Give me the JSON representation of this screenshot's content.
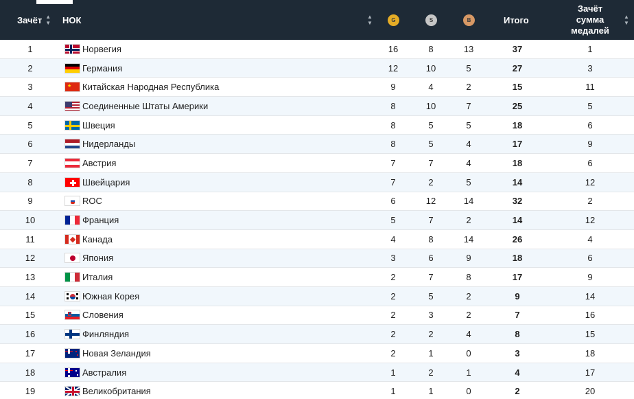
{
  "header": {
    "rank_label": "Зачёт",
    "noc_label": "НОК",
    "gold_label": "G",
    "silver_label": "S",
    "bronze_label": "B",
    "total_label": "Итого",
    "sum_label_1": "Зачёт",
    "sum_label_2": "сумма",
    "sum_label_3": "медалей",
    "header_bg": "#1e2a36",
    "gold_color": "#e5ac26",
    "silver_color": "#c6c6c6",
    "bronze_color": "#d79865",
    "sort_icon": "sort-arrows-icon"
  },
  "rows": [
    {
      "rank": "1",
      "country": "Норвегия",
      "flag": "norway-flag",
      "gold": "16",
      "silver": "8",
      "bronze": "13",
      "total": "37",
      "sum_rank": "1"
    },
    {
      "rank": "2",
      "country": "Германия",
      "flag": "germany-flag",
      "gold": "12",
      "silver": "10",
      "bronze": "5",
      "total": "27",
      "sum_rank": "3"
    },
    {
      "rank": "3",
      "country": "Китайская Народная Республика",
      "flag": "china-flag",
      "gold": "9",
      "silver": "4",
      "bronze": "2",
      "total": "15",
      "sum_rank": "11"
    },
    {
      "rank": "4",
      "country": "Соединенные Штаты Америки",
      "flag": "usa-flag",
      "gold": "8",
      "silver": "10",
      "bronze": "7",
      "total": "25",
      "sum_rank": "5"
    },
    {
      "rank": "5",
      "country": "Швеция",
      "flag": "sweden-flag",
      "gold": "8",
      "silver": "5",
      "bronze": "5",
      "total": "18",
      "sum_rank": "6"
    },
    {
      "rank": "6",
      "country": "Нидерланды",
      "flag": "netherlands-flag",
      "gold": "8",
      "silver": "5",
      "bronze": "4",
      "total": "17",
      "sum_rank": "9"
    },
    {
      "rank": "7",
      "country": "Австрия",
      "flag": "austria-flag",
      "gold": "7",
      "silver": "7",
      "bronze": "4",
      "total": "18",
      "sum_rank": "6"
    },
    {
      "rank": "8",
      "country": "Швейцария",
      "flag": "switzerland-flag",
      "gold": "7",
      "silver": "2",
      "bronze": "5",
      "total": "14",
      "sum_rank": "12"
    },
    {
      "rank": "9",
      "country": "ROC",
      "flag": "roc-flag",
      "gold": "6",
      "silver": "12",
      "bronze": "14",
      "total": "32",
      "sum_rank": "2"
    },
    {
      "rank": "10",
      "country": "Франция",
      "flag": "france-flag",
      "gold": "5",
      "silver": "7",
      "bronze": "2",
      "total": "14",
      "sum_rank": "12"
    },
    {
      "rank": "11",
      "country": "Канада",
      "flag": "canada-flag",
      "gold": "4",
      "silver": "8",
      "bronze": "14",
      "total": "26",
      "sum_rank": "4"
    },
    {
      "rank": "12",
      "country": "Япония",
      "flag": "japan-flag",
      "gold": "3",
      "silver": "6",
      "bronze": "9",
      "total": "18",
      "sum_rank": "6"
    },
    {
      "rank": "13",
      "country": "Италия",
      "flag": "italy-flag",
      "gold": "2",
      "silver": "7",
      "bronze": "8",
      "total": "17",
      "sum_rank": "9"
    },
    {
      "rank": "14",
      "country": "Южная Корея",
      "flag": "south-korea-flag",
      "gold": "2",
      "silver": "5",
      "bronze": "2",
      "total": "9",
      "sum_rank": "14"
    },
    {
      "rank": "15",
      "country": "Словения",
      "flag": "slovenia-flag",
      "gold": "2",
      "silver": "3",
      "bronze": "2",
      "total": "7",
      "sum_rank": "16"
    },
    {
      "rank": "16",
      "country": "Финляндия",
      "flag": "finland-flag",
      "gold": "2",
      "silver": "2",
      "bronze": "4",
      "total": "8",
      "sum_rank": "15"
    },
    {
      "rank": "17",
      "country": "Новая Зеландия",
      "flag": "new-zealand-flag",
      "gold": "2",
      "silver": "1",
      "bronze": "0",
      "total": "3",
      "sum_rank": "18"
    },
    {
      "rank": "18",
      "country": "Австралия",
      "flag": "australia-flag",
      "gold": "1",
      "silver": "2",
      "bronze": "1",
      "total": "4",
      "sum_rank": "17"
    },
    {
      "rank": "19",
      "country": "Великобритания",
      "flag": "uk-flag",
      "gold": "1",
      "silver": "1",
      "bronze": "0",
      "total": "2",
      "sum_rank": "20"
    }
  ]
}
